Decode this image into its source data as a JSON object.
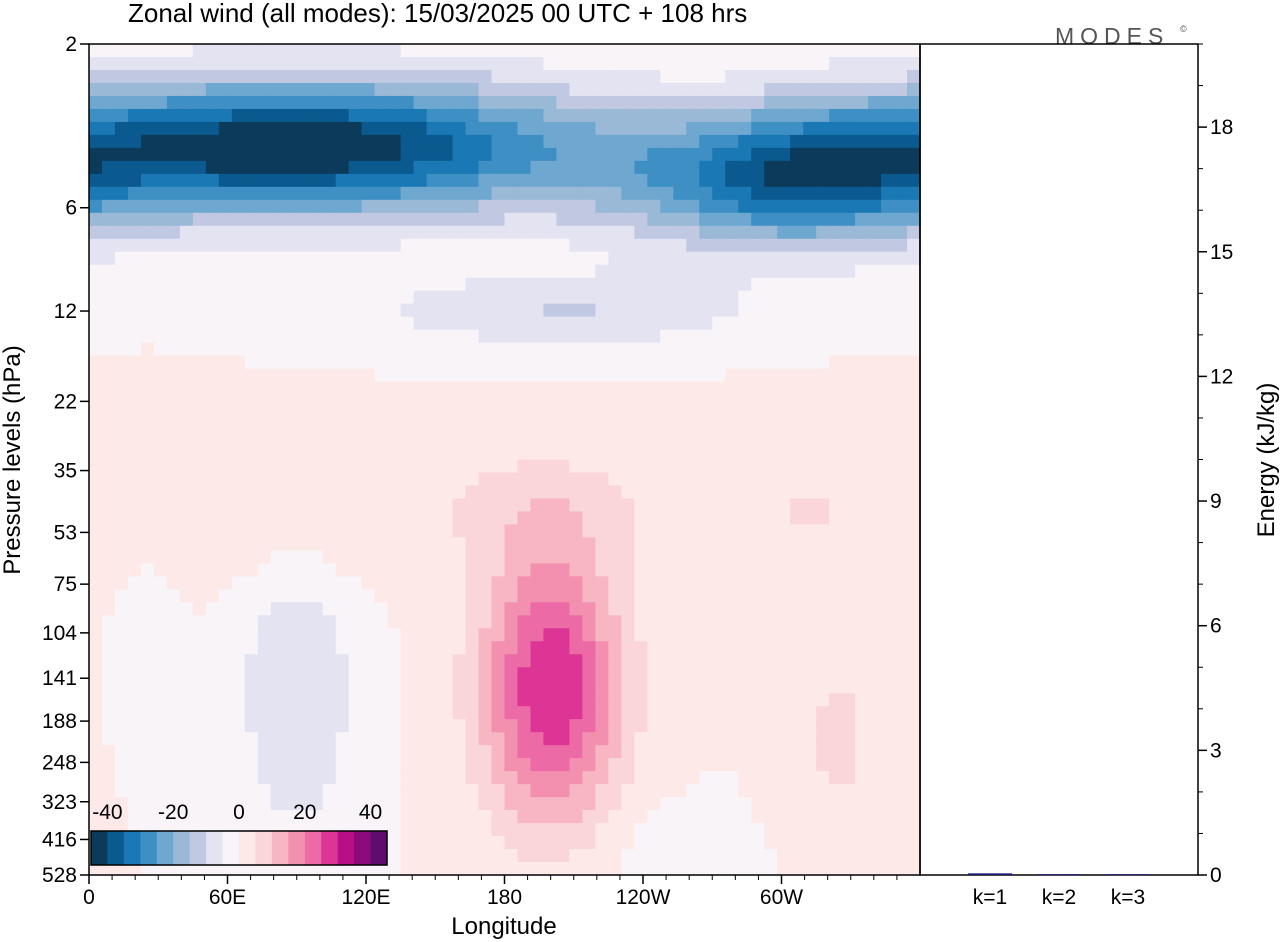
{
  "chart_data": {
    "type": "heatmap",
    "title": "Zonal wind (all modes):  15/03/2025  00 UTC  + 108 hrs",
    "brand": "MODES",
    "brand_mark": "©",
    "xlabel": "Longitude",
    "ylabel": "Pressure levels (hPa)",
    "y2label": "Energy (kJ/kg)",
    "x_ticks": [
      "0",
      "60E",
      "120E",
      "180",
      "120W",
      "60W"
    ],
    "y_ticks": [
      "2",
      "6",
      "12",
      "22",
      "35",
      "53",
      "75",
      "104",
      "141",
      "188",
      "248",
      "323",
      "416",
      "528"
    ],
    "y2_ticks": [
      "0",
      "3",
      "6",
      "9",
      "12",
      "15",
      "18"
    ],
    "y2_range": [
      0,
      20
    ],
    "colorbar": {
      "tick_labels": [
        "-40",
        "-20",
        "0",
        "20",
        "40"
      ],
      "colors": [
        "#0c3a5a",
        "#0b5a8f",
        "#1a78b4",
        "#3e8fc4",
        "#6ea8d1",
        "#9ab9d6",
        "#c1c9e2",
        "#e3e3f1",
        "#f8f4f8",
        "#fde9e8",
        "#fbd6d8",
        "#f7b6c2",
        "#f390b0",
        "#ec6aa5",
        "#dc3595",
        "#b80f86",
        "#8c0a7c",
        "#5e0c6e"
      ]
    },
    "wind_blobs": [
      {
        "lon": 90,
        "p": 4,
        "r_lon": 130,
        "r_ly": 0.45,
        "v": -45
      },
      {
        "lon": 300,
        "p": 5,
        "r_lon": 70,
        "r_ly": 0.45,
        "v": -32
      },
      {
        "lon": 205,
        "p": 12,
        "r_lon": 80,
        "r_ly": 0.25,
        "v": -10
      },
      {
        "lon": 90,
        "p": 45,
        "r_lon": 70,
        "r_ly": 0.5,
        "v": 6
      },
      {
        "lon": 200,
        "p": 45,
        "r_lon": 45,
        "r_ly": 0.4,
        "v": 5
      },
      {
        "lon": 310,
        "p": 45,
        "r_lon": 55,
        "r_ly": 0.55,
        "v": 5
      },
      {
        "lon": 90,
        "p": 155,
        "r_lon": 25,
        "r_ly": 1.0,
        "v": -10
      },
      {
        "lon": 25,
        "p": 110,
        "r_lon": 12,
        "r_ly": 0.5,
        "v": -5
      },
      {
        "lon": 200,
        "p": 150,
        "r_lon": 30,
        "r_ly": 0.9,
        "v": 30
      },
      {
        "lon": 325,
        "p": 210,
        "r_lon": 22,
        "r_ly": 0.7,
        "v": 6
      },
      {
        "lon": 250,
        "p": 480,
        "r_lon": 30,
        "r_ly": 0.35,
        "v": -3
      }
    ],
    "energy_bars": [
      {
        "label": "k=1",
        "value": 0.04
      },
      {
        "label": "k=2",
        "value": 0.02
      },
      {
        "label": "k=3",
        "value": 0.02
      }
    ],
    "bar_color": "#1a1a7a",
    "grid": false
  }
}
